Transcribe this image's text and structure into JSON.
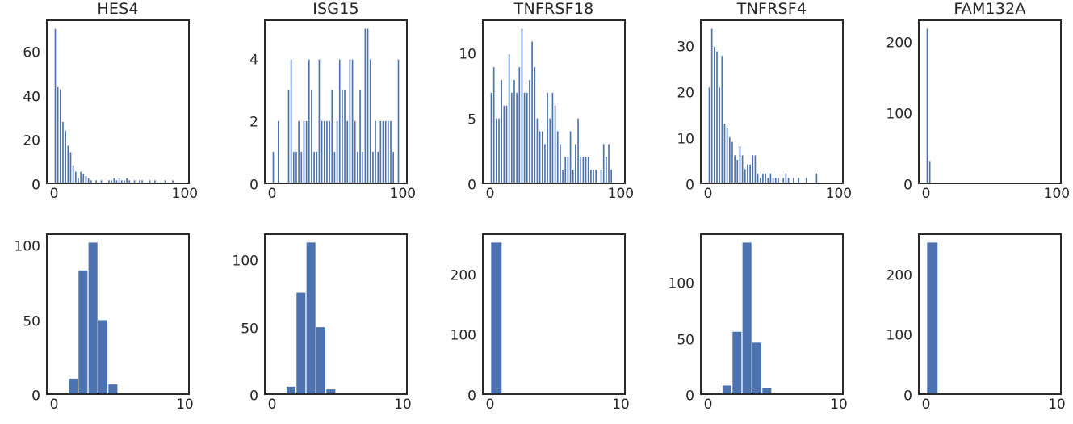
{
  "figure": {
    "background": "#ffffff",
    "bar_color": "#4C72B0",
    "spine_color": "#2b2b2b",
    "text_color": "#262626",
    "grid": "off",
    "legend": "none",
    "rows": 2,
    "cols": 5,
    "column_titles": [
      "HES4",
      "ISG15",
      "TNFRSF18",
      "TNFRSF4",
      "FAM132A"
    ]
  },
  "chart_data": [
    {
      "type": "bar",
      "title": "HES4",
      "xlabel": "",
      "ylabel": "",
      "xlim": [
        -5,
        105
      ],
      "ylim": [
        0,
        74.6
      ],
      "x_ticks": [
        {
          "v": 0,
          "label": "0"
        },
        {
          "v": 100,
          "label": "100"
        }
      ],
      "y_ticks": [
        {
          "v": 0,
          "label": "0"
        },
        {
          "v": 20,
          "label": "20"
        },
        {
          "v": 40,
          "label": "40"
        },
        {
          "v": 60,
          "label": "60"
        }
      ],
      "bin_start": 0,
      "bin_width": 2,
      "bar_style": "thin",
      "values": [
        71,
        44,
        43,
        28,
        24,
        17,
        14,
        8,
        5,
        2,
        5,
        4,
        3,
        2,
        1,
        0,
        1,
        0,
        1,
        0,
        0,
        1,
        1,
        2,
        1,
        2,
        1,
        1,
        2,
        1,
        0,
        1,
        0,
        1,
        1,
        0,
        0,
        1,
        0,
        1,
        0,
        0,
        0,
        1,
        0,
        0,
        1,
        0,
        0,
        0
      ]
    },
    {
      "type": "bar",
      "title": "ISG15",
      "xlabel": "",
      "ylabel": "",
      "xlim": [
        -5,
        105
      ],
      "ylim": [
        0,
        5.25
      ],
      "x_ticks": [
        {
          "v": 0,
          "label": "0"
        },
        {
          "v": 100,
          "label": "100"
        }
      ],
      "y_ticks": [
        {
          "v": 0,
          "label": "0"
        },
        {
          "v": 2,
          "label": "2"
        },
        {
          "v": 4,
          "label": "4"
        }
      ],
      "bin_start": 0,
      "bin_width": 2,
      "bar_style": "thin",
      "values": [
        1,
        0,
        2,
        0,
        0,
        0,
        3,
        4,
        1,
        1,
        2,
        1,
        2,
        2,
        4,
        3,
        1,
        1,
        4,
        2,
        2,
        2,
        2,
        3,
        1,
        2,
        4,
        3,
        3,
        2,
        4,
        4,
        2,
        1,
        3,
        1,
        5,
        5,
        4,
        1,
        2,
        1,
        2,
        2,
        2,
        2,
        2,
        1,
        0,
        4
      ]
    },
    {
      "type": "bar",
      "title": "TNFRSF18",
      "xlabel": "",
      "ylabel": "",
      "xlim": [
        -5,
        105
      ],
      "ylim": [
        0,
        12.6
      ],
      "x_ticks": [
        {
          "v": 0,
          "label": "0"
        },
        {
          "v": 100,
          "label": "100"
        }
      ],
      "y_ticks": [
        {
          "v": 0,
          "label": "0"
        },
        {
          "v": 5,
          "label": "5"
        },
        {
          "v": 10,
          "label": "10"
        }
      ],
      "bin_start": 0,
      "bin_width": 2,
      "bar_style": "thin",
      "values": [
        7,
        9,
        5,
        5,
        8,
        6,
        6,
        10,
        7,
        8,
        7,
        9,
        12,
        7,
        7,
        8,
        11,
        9,
        5,
        4,
        4,
        3,
        7,
        5,
        7,
        6,
        4,
        3,
        1,
        2,
        2,
        4,
        1,
        3,
        5,
        2,
        2,
        2,
        2,
        1,
        1,
        1,
        0,
        1,
        3,
        2,
        3,
        1,
        0,
        0
      ]
    },
    {
      "type": "bar",
      "title": "TNFRSF4",
      "xlabel": "",
      "ylabel": "",
      "xlim": [
        -5,
        105
      ],
      "ylim": [
        0,
        35.7
      ],
      "x_ticks": [
        {
          "v": 0,
          "label": "0"
        },
        {
          "v": 100,
          "label": "100"
        }
      ],
      "y_ticks": [
        {
          "v": 0,
          "label": "0"
        },
        {
          "v": 10,
          "label": "10"
        },
        {
          "v": 20,
          "label": "20"
        },
        {
          "v": 30,
          "label": "30"
        }
      ],
      "bin_start": 0,
      "bin_width": 2,
      "bar_style": "thin",
      "values": [
        21,
        34,
        30,
        29,
        21,
        28,
        13,
        12,
        10,
        9,
        6,
        5,
        8,
        6,
        3,
        4,
        4,
        6,
        6,
        2,
        1,
        2,
        2,
        1,
        2,
        1,
        1,
        1,
        0,
        1,
        2,
        1,
        0,
        1,
        0,
        1,
        0,
        0,
        1,
        0,
        0,
        0,
        2,
        0,
        0,
        0,
        0,
        0,
        0,
        0
      ]
    },
    {
      "type": "bar",
      "title": "FAM132A",
      "xlabel": "",
      "ylabel": "",
      "xlim": [
        -5,
        105
      ],
      "ylim": [
        0,
        232
      ],
      "x_ticks": [
        {
          "v": 0,
          "label": "0"
        },
        {
          "v": 100,
          "label": "100"
        }
      ],
      "y_ticks": [
        {
          "v": 0,
          "label": "0"
        },
        {
          "v": 100,
          "label": "100"
        },
        {
          "v": 200,
          "label": "200"
        }
      ],
      "bin_start": 0,
      "bin_width": 2,
      "bar_style": "thin",
      "values": [
        221,
        31,
        0,
        0,
        0,
        0,
        0,
        0,
        0,
        0,
        0,
        0,
        0,
        0,
        0,
        0,
        0,
        0,
        0,
        0,
        0,
        0,
        0,
        0,
        0,
        0,
        0,
        0,
        0,
        0,
        0,
        0,
        0,
        0,
        0,
        0,
        0,
        0,
        0,
        0,
        0,
        0,
        0,
        0,
        0,
        0,
        0,
        0,
        0,
        0
      ]
    },
    {
      "type": "bar",
      "title": "",
      "xlabel": "",
      "ylabel": "",
      "xlim": [
        -0.5,
        10.5
      ],
      "ylim": [
        0,
        108.2
      ],
      "x_ticks": [
        {
          "v": 0,
          "label": "0"
        },
        {
          "v": 10,
          "label": "10"
        }
      ],
      "y_ticks": [
        {
          "v": 0,
          "label": "0"
        },
        {
          "v": 50,
          "label": "50"
        },
        {
          "v": 100,
          "label": "100"
        }
      ],
      "bin_start": 1.1,
      "bin_width": 0.78,
      "bar_style": "wide",
      "values": [
        10,
        84,
        103,
        50,
        6
      ]
    },
    {
      "type": "bar",
      "title": "",
      "xlabel": "",
      "ylabel": "",
      "xlim": [
        -0.5,
        10.5
      ],
      "ylim": [
        0,
        119.7
      ],
      "x_ticks": [
        {
          "v": 0,
          "label": "0"
        },
        {
          "v": 10,
          "label": "10"
        }
      ],
      "y_ticks": [
        {
          "v": 0,
          "label": "0"
        },
        {
          "v": 50,
          "label": "50"
        },
        {
          "v": 100,
          "label": "100"
        }
      ],
      "bin_start": 1.1,
      "bin_width": 0.78,
      "bar_style": "wide",
      "values": [
        5,
        76,
        114,
        50,
        3
      ]
    },
    {
      "type": "bar",
      "title": "",
      "xlabel": "",
      "ylabel": "",
      "xlim": [
        -0.5,
        10.5
      ],
      "ylim": [
        0,
        267.8
      ],
      "x_ticks": [
        {
          "v": 0,
          "label": "0"
        },
        {
          "v": 10,
          "label": "10"
        }
      ],
      "y_ticks": [
        {
          "v": 0,
          "label": "0"
        },
        {
          "v": 100,
          "label": "100"
        },
        {
          "v": 200,
          "label": "200"
        }
      ],
      "bin_start": 0.05,
      "bin_width": 0.9,
      "bar_style": "wide",
      "values": [
        255
      ]
    },
    {
      "type": "bar",
      "title": "",
      "xlabel": "",
      "ylabel": "",
      "xlim": [
        -0.5,
        10.5
      ],
      "ylim": [
        0,
        143.9
      ],
      "x_ticks": [
        {
          "v": 0,
          "label": "0"
        },
        {
          "v": 10,
          "label": "10"
        }
      ],
      "y_ticks": [
        {
          "v": 0,
          "label": "0"
        },
        {
          "v": 50,
          "label": "50"
        },
        {
          "v": 100,
          "label": "100"
        }
      ],
      "bin_start": 1.1,
      "bin_width": 0.78,
      "bar_style": "wide",
      "values": [
        7,
        56,
        137,
        46,
        5
      ]
    },
    {
      "type": "bar",
      "title": "",
      "xlabel": "",
      "ylabel": "",
      "xlim": [
        -0.5,
        10.5
      ],
      "ylim": [
        0,
        267.8
      ],
      "x_ticks": [
        {
          "v": 0,
          "label": "0"
        },
        {
          "v": 10,
          "label": "10"
        }
      ],
      "y_ticks": [
        {
          "v": 0,
          "label": "0"
        },
        {
          "v": 100,
          "label": "100"
        },
        {
          "v": 200,
          "label": "200"
        }
      ],
      "bin_start": 0.05,
      "bin_width": 0.9,
      "bar_style": "wide",
      "values": [
        255
      ]
    }
  ]
}
